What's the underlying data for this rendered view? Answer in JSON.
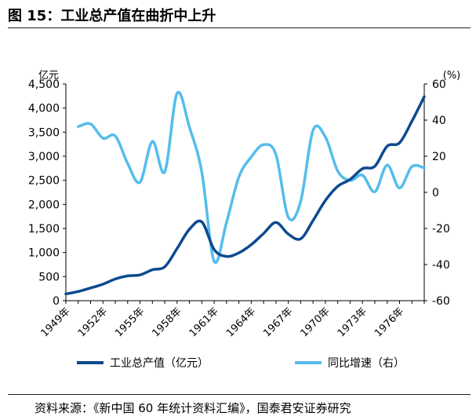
{
  "title": "图 15：工业总产值在曲折中上升",
  "source": "资料来源：《新中国 60 年统计资料汇编》，国泰君安证券研究",
  "colors": {
    "industrial_output": "#0d4a8f",
    "growth": "#55bdec",
    "axis": "#000000"
  },
  "chart_data": {
    "type": "line",
    "left_axis_unit": "亿元",
    "right_axis_unit": "(%)",
    "left_ylim": [
      0,
      4500
    ],
    "right_ylim": [
      -60,
      60
    ],
    "left_ticks": [
      "0",
      "500",
      "1,000",
      "1,500",
      "2,000",
      "2,500",
      "3,000",
      "3,500",
      "4,000",
      "4,500"
    ],
    "right_ticks": [
      "-60",
      "-40",
      "-20",
      "0",
      "20",
      "40",
      "60"
    ],
    "x_tick_labels": [
      "1949年",
      "1952年",
      "1955年",
      "1958年",
      "1961年",
      "1964年",
      "1967年",
      "1970年",
      "1973年",
      "1976年"
    ],
    "years": [
      1949,
      1950,
      1951,
      1952,
      1953,
      1954,
      1955,
      1956,
      1957,
      1958,
      1959,
      1960,
      1961,
      1962,
      1963,
      1964,
      1965,
      1966,
      1967,
      1968,
      1969,
      1970,
      1971,
      1972,
      1973,
      1974,
      1975,
      1976,
      1977,
      1978
    ],
    "grid": false,
    "legend_position": "bottom",
    "series": [
      {
        "name": "工业总产值（亿元）",
        "axis": "left",
        "values": [
          140,
          191,
          264,
          343,
          450,
          515,
          534,
          642,
          704,
          1083,
          1483,
          1637,
          1062,
          920,
          993,
          1164,
          1394,
          1624,
          1382,
          1285,
          1665,
          2080,
          2375,
          2517,
          2741,
          2792,
          3207,
          3278,
          3725,
          4237
        ]
      },
      {
        "name": "同比增速（右）",
        "axis": "right",
        "values": [
          null,
          36.4,
          37.9,
          30,
          31.2,
          16,
          5.6,
          28.2,
          11.4,
          54.8,
          36.1,
          11.2,
          -38.2,
          -16.6,
          8.5,
          19.6,
          26.4,
          20.9,
          -13.8,
          -5,
          34.3,
          30.7,
          11.8,
          6.6,
          9.5,
          0.3,
          15.1,
          2.4,
          14.3,
          13.5
        ]
      }
    ]
  }
}
